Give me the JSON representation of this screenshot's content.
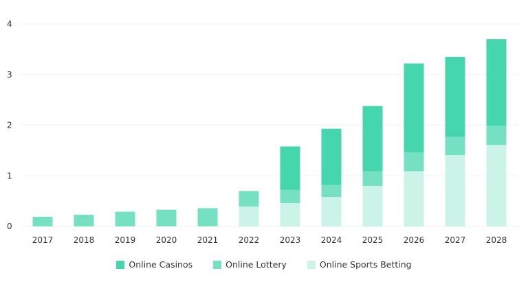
{
  "chart_data": {
    "type": "bar",
    "stacked": true,
    "title": "",
    "xlabel": "",
    "ylabel": "",
    "ylim": [
      0,
      4
    ],
    "yticks": [
      0,
      1,
      2,
      3,
      4
    ],
    "grid": true,
    "legend_position": "bottom-center",
    "categories": [
      "2017",
      "2018",
      "2019",
      "2020",
      "2021",
      "2022",
      "2023",
      "2024",
      "2025",
      "2026",
      "2027",
      "2028"
    ],
    "series": [
      {
        "name": "Online Sports Betting",
        "color": "#ccf3e8",
        "values": [
          0,
          0,
          0,
          0,
          0,
          0.39,
          0.46,
          0.58,
          0.8,
          1.09,
          1.41,
          1.61
        ]
      },
      {
        "name": "Online Lottery",
        "color": "#76e0c2",
        "values": [
          0.19,
          0.23,
          0.29,
          0.33,
          0.36,
          0.31,
          0.26,
          0.24,
          0.29,
          0.37,
          0.36,
          0.38
        ]
      },
      {
        "name": "Online Casinos",
        "color": "#46d6ae",
        "values": [
          0,
          0,
          0,
          0,
          0,
          0,
          0.86,
          1.11,
          1.29,
          1.76,
          1.58,
          1.71
        ]
      }
    ],
    "legend_order": [
      "Online Casinos",
      "Online Lottery",
      "Online Sports Betting"
    ]
  }
}
